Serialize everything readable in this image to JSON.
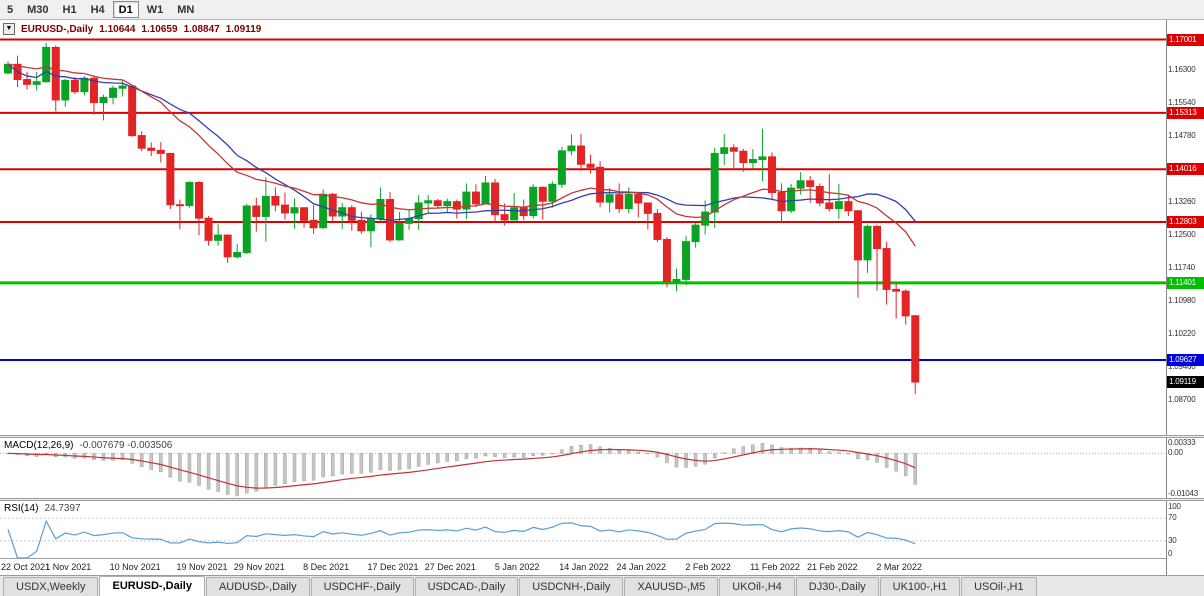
{
  "toolbar": {
    "items": [
      {
        "label": "5",
        "active": false
      },
      {
        "label": "M30",
        "active": false
      },
      {
        "label": "H1",
        "active": false
      },
      {
        "label": "H4",
        "active": false
      },
      {
        "label": "D1",
        "active": true
      },
      {
        "label": "W1",
        "active": false
      },
      {
        "label": "MN",
        "active": false
      }
    ]
  },
  "header": {
    "symbol": "EURUSD-,Daily",
    "open": "1.10644",
    "high": "1.10659",
    "low": "1.08847",
    "close": "1.09119"
  },
  "chart_data": {
    "type": "candlestick",
    "symbol": "EURUSD",
    "timeframe": "Daily",
    "price_range": [
      1.079,
      1.1745
    ],
    "layout": {
      "candle_start": 8,
      "candle_step": 9.55,
      "body_width": 7,
      "grid": false,
      "background": "#ffffff",
      "legend_position": "none"
    },
    "colors": {
      "bull": "#0aa424",
      "bear": "#e32424",
      "ma_blue": "#3240b0",
      "ma_red": "#c03838",
      "macd_hist": "#c6c6c6",
      "macd_hist_border": "#9e9e9e",
      "macd_signal": "#c03333",
      "rsi_line": "#5a9fd4"
    },
    "candles": [
      [
        1.1623,
        1.165,
        1.162,
        1.1643
      ],
      [
        1.1643,
        1.1663,
        1.1591,
        1.1608
      ],
      [
        1.1608,
        1.1626,
        1.1585,
        1.1597
      ],
      [
        1.1597,
        1.1626,
        1.1583,
        1.1603
      ],
      [
        1.1603,
        1.1692,
        1.1601,
        1.1682
      ],
      [
        1.1682,
        1.1686,
        1.1535,
        1.1561
      ],
      [
        1.1561,
        1.1609,
        1.1545,
        1.1606
      ],
      [
        1.1606,
        1.1614,
        1.1575,
        1.158
      ],
      [
        1.158,
        1.1616,
        1.1572,
        1.1611
      ],
      [
        1.1611,
        1.1617,
        1.1527,
        1.1555
      ],
      [
        1.1555,
        1.1573,
        1.1514,
        1.1567
      ],
      [
        1.1567,
        1.1594,
        1.1551,
        1.1588
      ],
      [
        1.1588,
        1.1608,
        1.1569,
        1.1593
      ],
      [
        1.1593,
        1.1595,
        1.1476,
        1.1479
      ],
      [
        1.1479,
        1.1489,
        1.1443,
        1.145
      ],
      [
        1.145,
        1.1463,
        1.1432,
        1.1445
      ],
      [
        1.1445,
        1.1464,
        1.1417,
        1.1438
      ],
      [
        1.1438,
        1.1439,
        1.131,
        1.132
      ],
      [
        1.132,
        1.1332,
        1.1263,
        1.1318
      ],
      [
        1.1318,
        1.1374,
        1.1313,
        1.1371
      ],
      [
        1.1371,
        1.1374,
        1.125,
        1.1289
      ],
      [
        1.1289,
        1.1294,
        1.1226,
        1.1238
      ],
      [
        1.1238,
        1.1275,
        1.1226,
        1.125
      ],
      [
        1.125,
        1.1252,
        1.1186,
        1.12
      ],
      [
        1.12,
        1.123,
        1.1196,
        1.121
      ],
      [
        1.121,
        1.1322,
        1.1206,
        1.1317
      ],
      [
        1.1317,
        1.1336,
        1.1258,
        1.1293
      ],
      [
        1.1293,
        1.1383,
        1.1235,
        1.1339
      ],
      [
        1.1339,
        1.136,
        1.1305,
        1.1319
      ],
      [
        1.1319,
        1.1348,
        1.1286,
        1.1301
      ],
      [
        1.1301,
        1.1334,
        1.1265,
        1.1313
      ],
      [
        1.1313,
        1.1313,
        1.1267,
        1.1284
      ],
      [
        1.1284,
        1.1319,
        1.1253,
        1.1267
      ],
      [
        1.1267,
        1.1355,
        1.1264,
        1.1344
      ],
      [
        1.1344,
        1.1347,
        1.128,
        1.1294
      ],
      [
        1.1294,
        1.1324,
        1.1264,
        1.1313
      ],
      [
        1.1313,
        1.1319,
        1.126,
        1.1284
      ],
      [
        1.1284,
        1.1304,
        1.1253,
        1.126
      ],
      [
        1.126,
        1.1298,
        1.1222,
        1.1288
      ],
      [
        1.1288,
        1.136,
        1.128,
        1.1332
      ],
      [
        1.1332,
        1.1349,
        1.1234,
        1.1239
      ],
      [
        1.1239,
        1.1303,
        1.1237,
        1.1277
      ],
      [
        1.1277,
        1.131,
        1.1262,
        1.1288
      ],
      [
        1.1288,
        1.1342,
        1.1262,
        1.1324
      ],
      [
        1.1324,
        1.1342,
        1.1301,
        1.1329
      ],
      [
        1.1329,
        1.1333,
        1.1312,
        1.1318
      ],
      [
        1.1318,
        1.1334,
        1.1303,
        1.1327
      ],
      [
        1.1327,
        1.1332,
        1.1288,
        1.131
      ],
      [
        1.131,
        1.1369,
        1.1287,
        1.1349
      ],
      [
        1.1349,
        1.1367,
        1.1315,
        1.1322
      ],
      [
        1.1322,
        1.1386,
        1.1321,
        1.137
      ],
      [
        1.137,
        1.1379,
        1.1279,
        1.1297
      ],
      [
        1.1297,
        1.1323,
        1.1272,
        1.1285
      ],
      [
        1.1285,
        1.1347,
        1.1284,
        1.1313
      ],
      [
        1.1313,
        1.1332,
        1.1285,
        1.1295
      ],
      [
        1.1295,
        1.1367,
        1.1288,
        1.136
      ],
      [
        1.136,
        1.1362,
        1.1285,
        1.1328
      ],
      [
        1.1328,
        1.1374,
        1.1313,
        1.1367
      ],
      [
        1.1367,
        1.1453,
        1.1359,
        1.1444
      ],
      [
        1.1444,
        1.1482,
        1.1434,
        1.1455
      ],
      [
        1.1455,
        1.1483,
        1.1398,
        1.1413
      ],
      [
        1.1413,
        1.1435,
        1.1392,
        1.1406
      ],
      [
        1.1406,
        1.142,
        1.1315,
        1.1326
      ],
      [
        1.1326,
        1.1358,
        1.1302,
        1.1343
      ],
      [
        1.1343,
        1.1369,
        1.1301,
        1.1311
      ],
      [
        1.1311,
        1.136,
        1.13,
        1.1344
      ],
      [
        1.1344,
        1.1349,
        1.1291,
        1.1324
      ],
      [
        1.1324,
        1.1325,
        1.1263,
        1.13
      ],
      [
        1.13,
        1.131,
        1.1234,
        1.124
      ],
      [
        1.124,
        1.1245,
        1.113,
        1.1144
      ],
      [
        1.1144,
        1.1173,
        1.1121,
        1.1148
      ],
      [
        1.1148,
        1.1248,
        1.1135,
        1.1235
      ],
      [
        1.1235,
        1.1279,
        1.1221,
        1.1273
      ],
      [
        1.1273,
        1.133,
        1.1251,
        1.1303
      ],
      [
        1.1303,
        1.1451,
        1.1266,
        1.1438
      ],
      [
        1.1438,
        1.1483,
        1.1411,
        1.1451
      ],
      [
        1.1451,
        1.1459,
        1.1399,
        1.1443
      ],
      [
        1.1443,
        1.1448,
        1.1396,
        1.1417
      ],
      [
        1.1417,
        1.1448,
        1.1403,
        1.1424
      ],
      [
        1.1424,
        1.1495,
        1.1374,
        1.143
      ],
      [
        1.143,
        1.144,
        1.133,
        1.1348
      ],
      [
        1.1348,
        1.1369,
        1.1278,
        1.1306
      ],
      [
        1.1306,
        1.1368,
        1.1301,
        1.1358
      ],
      [
        1.1358,
        1.1395,
        1.1343,
        1.1375
      ],
      [
        1.1375,
        1.1386,
        1.1324,
        1.1362
      ],
      [
        1.1362,
        1.1369,
        1.1316,
        1.1324
      ],
      [
        1.1324,
        1.1391,
        1.1304,
        1.1311
      ],
      [
        1.1311,
        1.1368,
        1.1287,
        1.1327
      ],
      [
        1.1327,
        1.1342,
        1.1294,
        1.1306
      ],
      [
        1.1306,
        1.1308,
        1.1106,
        1.1193
      ],
      [
        1.1193,
        1.1274,
        1.1163,
        1.127
      ],
      [
        1.127,
        1.1273,
        1.1122,
        1.1219
      ],
      [
        1.1219,
        1.1235,
        1.109,
        1.1125
      ],
      [
        1.1125,
        1.114,
        1.1058,
        1.1121
      ],
      [
        1.1121,
        1.1125,
        1.1044,
        1.1064
      ],
      [
        1.10644,
        1.10659,
        1.08847,
        1.09119
      ]
    ],
    "x_labels": [
      {
        "index": 0,
        "label": "22 Oct 2021"
      },
      {
        "index": 6,
        "label": "1 Nov 2021"
      },
      {
        "index": 13,
        "label": "10 Nov 2021"
      },
      {
        "index": 20,
        "label": "19 Nov 2021"
      },
      {
        "index": 26,
        "label": "29 Nov 2021"
      },
      {
        "index": 33,
        "label": "8 Dec 2021"
      },
      {
        "index": 40,
        "label": "17 Dec 2021"
      },
      {
        "index": 46,
        "label": "27 Dec 2021"
      },
      {
        "index": 53,
        "label": "5 Jan 2022"
      },
      {
        "index": 60,
        "label": "14 Jan 2022"
      },
      {
        "index": 66,
        "label": "24 Jan 2022"
      },
      {
        "index": 73,
        "label": "2 Feb 2022"
      },
      {
        "index": 80,
        "label": "11 Feb 2022"
      },
      {
        "index": 86,
        "label": "21 Feb 2022"
      },
      {
        "index": 93,
        "label": "2 Mar 2022"
      }
    ],
    "levels": [
      {
        "price": 1.17001,
        "label": "1.17001",
        "color": "#dd0000",
        "line_width": 2
      },
      {
        "price": 1.15313,
        "label": "1.15313",
        "color": "#dd0000",
        "line_width": 2
      },
      {
        "price": 1.14016,
        "label": "1.14016",
        "color": "#dd0000",
        "line_width": 2
      },
      {
        "price": 1.12803,
        "label": "1.12803",
        "color": "#dd0000",
        "line_width": 2
      },
      {
        "price": 1.11401,
        "label": "1.11401",
        "color": "#00c000",
        "line_width": 3
      },
      {
        "price": 1.09627,
        "label": "1.09627",
        "color": "#0000dd",
        "line_width": 2
      }
    ],
    "current_price": {
      "price": 1.09119,
      "label": "1.09119",
      "color": "#000000"
    },
    "axis_labels": [
      {
        "price": 1.163,
        "label": "1.16300"
      },
      {
        "price": 1.1554,
        "label": "1.15540"
      },
      {
        "price": 1.1478,
        "label": "1.14780"
      },
      {
        "price": 1.1326,
        "label": "1.13260"
      },
      {
        "price": 1.125,
        "label": "1.12500"
      },
      {
        "price": 1.1174,
        "label": "1.11740"
      },
      {
        "price": 1.1098,
        "label": "1.10980"
      },
      {
        "price": 1.1022,
        "label": "1.10220"
      },
      {
        "price": 1.0946,
        "label": "1.09460"
      },
      {
        "price": 1.087,
        "label": "1.08700"
      }
    ],
    "indicators": {
      "macd": {
        "title": "MACD(12,26,9)",
        "values": "-0.007679 -0.003506",
        "params": {
          "fast": 12,
          "slow": 26,
          "signal": 9
        },
        "axis_labels": [
          "0.00333",
          "0.00",
          "-0.01043"
        ],
        "axis_values": [
          0.00333,
          0,
          -0.01043
        ]
      },
      "rsi": {
        "title": "RSI(14)",
        "value": "24.7397",
        "period": 14,
        "axis_labels": [
          "100",
          "70",
          "30",
          "0"
        ],
        "axis_values": [
          100,
          70,
          30,
          0
        ],
        "levels": [
          70,
          30
        ]
      }
    }
  },
  "tabbar": {
    "tabs": [
      {
        "label": "USDX,Weekly",
        "active": false
      },
      {
        "label": "EURUSD-,Daily",
        "active": true
      },
      {
        "label": "AUDUSD-,Daily",
        "active": false
      },
      {
        "label": "USDCHF-,Daily",
        "active": false
      },
      {
        "label": "USDCAD-,Daily",
        "active": false
      },
      {
        "label": "USDCNH-,Daily",
        "active": false
      },
      {
        "label": "XAUUSD-,M5",
        "active": false
      },
      {
        "label": "UKOil-,H4",
        "active": false
      },
      {
        "label": "DJ30-,Daily",
        "active": false
      },
      {
        "label": "UK100-,H1",
        "active": false
      },
      {
        "label": "USOil-,H1",
        "active": false
      }
    ]
  }
}
